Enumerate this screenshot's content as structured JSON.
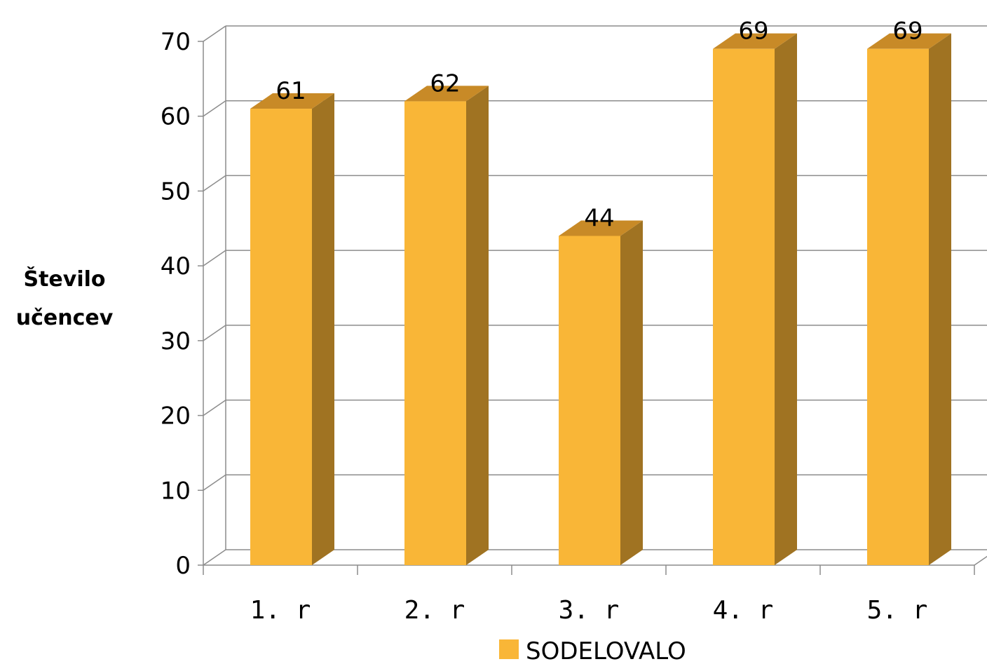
{
  "chart_data": {
    "type": "bar",
    "categories": [
      "1. r",
      "2. r",
      "3. r",
      "4. r",
      "5. r"
    ],
    "series": [
      {
        "name": "SODELOVALO",
        "values": [
          61,
          62,
          44,
          69,
          69
        ]
      }
    ],
    "data_labels": [
      "61",
      "62",
      "44",
      "69",
      "69"
    ],
    "yticks": [
      0,
      10,
      20,
      30,
      40,
      50,
      60,
      70
    ],
    "ylim": [
      0,
      70
    ],
    "ylabel_lines": [
      "Število",
      "učencev"
    ],
    "xlabel": "",
    "title": "",
    "grid": true,
    "three_d": true,
    "legend_position": "bottom",
    "colors": {
      "bar_front": "#f9b637",
      "bar_top": "#c88a27",
      "bar_side": "#a07322"
    }
  }
}
